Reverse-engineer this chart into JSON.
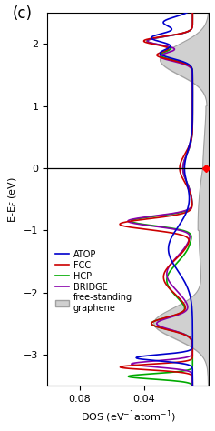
{
  "title": "(c)",
  "xlabel": "DOS (eV$^{-1}$atom$^{-1}$)",
  "ylabel": "E-E$_F$ (eV)",
  "ylim": [
    -3.5,
    2.5
  ],
  "xlim_left": 0.1,
  "xlim_right": 0.0,
  "xticks": [
    0.08,
    0.04
  ],
  "yticks": [
    -3,
    -2,
    -1,
    0,
    1,
    2
  ],
  "legend_labels": [
    "ATOP",
    "FCC",
    "HCP",
    "BRIDGE",
    "free-standing\ngraphene"
  ],
  "legend_colors": [
    "#0000ff",
    "#ff0000",
    "#00aa00",
    "#aa00aa"
  ],
  "bg_color": "#ffffff",
  "plot_bg": "#ffffff",
  "figsize": [
    2.37,
    4.74
  ],
  "dpi": 100
}
